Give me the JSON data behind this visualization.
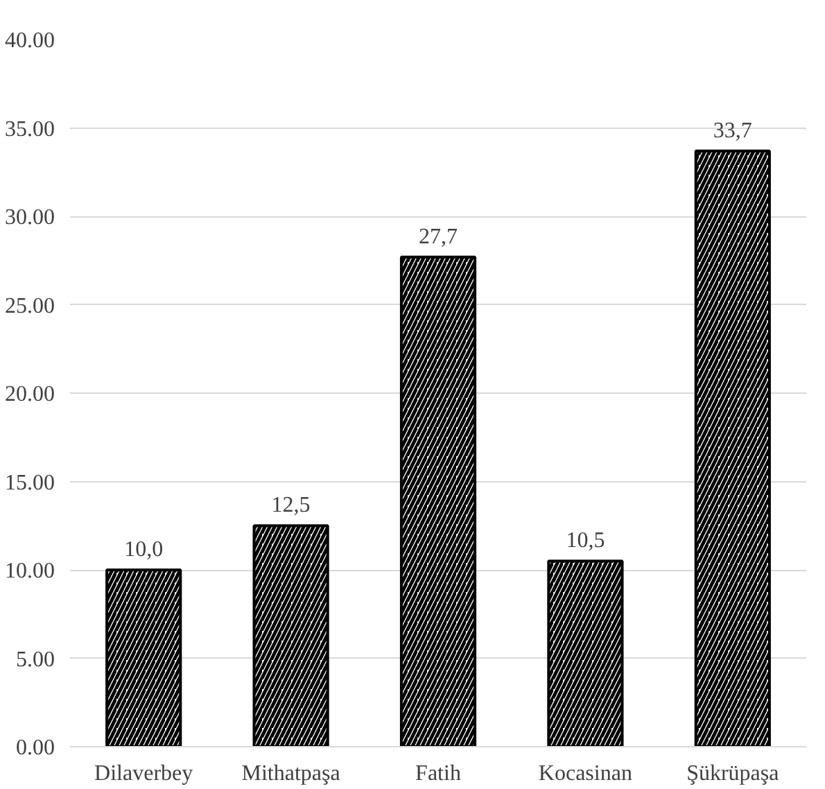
{
  "chart_data": {
    "type": "bar",
    "categories": [
      "Dilaverbey",
      "Mithatpaşa",
      "Fatih",
      "Kocasinan",
      "Şükrüpaşa"
    ],
    "values": [
      10.0,
      12.5,
      27.7,
      10.5,
      33.7
    ],
    "value_labels": [
      "10,0",
      "12,5",
      "27,7",
      "10,5",
      "33,7"
    ],
    "color": "#000000",
    "ylim": [
      0,
      40
    ],
    "yticks": [
      {
        "value": 0,
        "label": "0.00"
      },
      {
        "value": 5,
        "label": "5.00"
      },
      {
        "value": 10,
        "label": "10.00"
      },
      {
        "value": 15,
        "label": "15.00"
      },
      {
        "value": 20,
        "label": "20.00"
      },
      {
        "value": 25,
        "label": "25.00"
      },
      {
        "value": 30,
        "label": "30.00"
      },
      {
        "value": 35,
        "label": "35.00"
      },
      {
        "value": 40,
        "label": "40.00"
      }
    ],
    "grid": "y"
  }
}
